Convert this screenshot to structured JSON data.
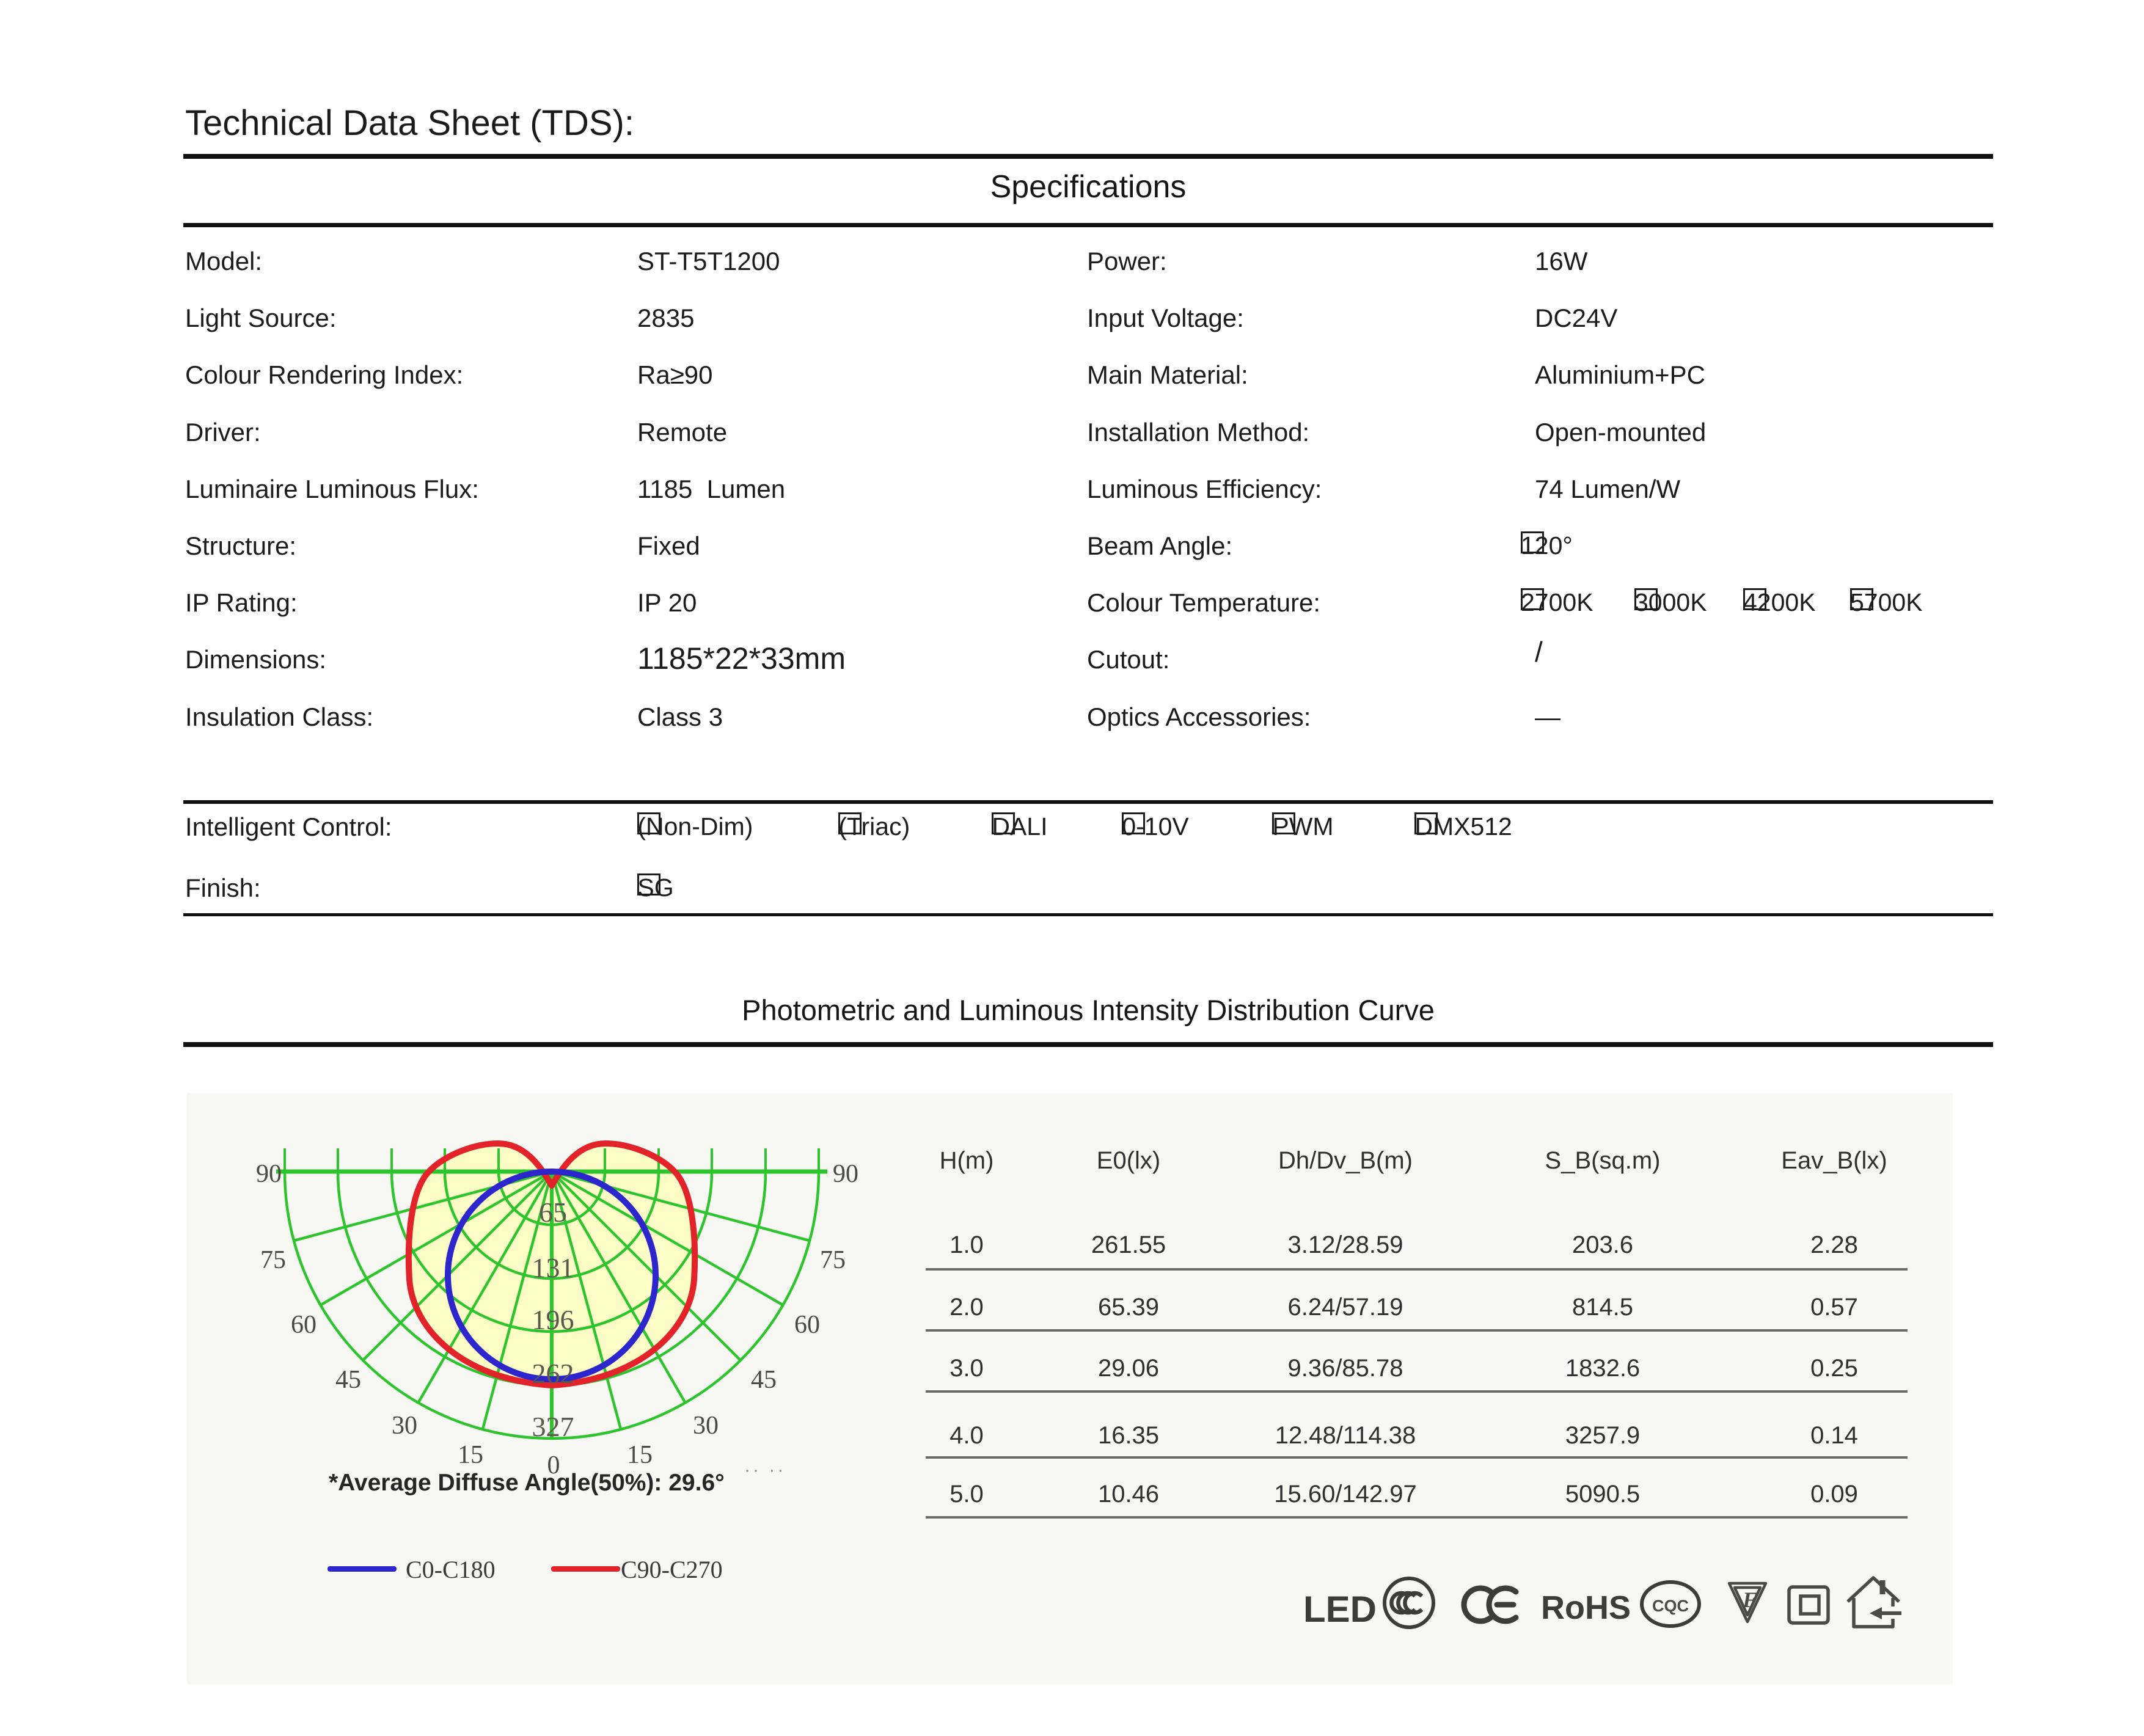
{
  "header": {
    "title": "Technical Data Sheet (TDS):"
  },
  "specifications": {
    "title": "Specifications",
    "rows": [
      {
        "l1": "Model:",
        "v1": "ST-T5T1200",
        "l2": "Power:",
        "v2": "16W"
      },
      {
        "l1": "Light Source:",
        "v1": "2835",
        "l2": "Input Voltage:",
        "v2": "DC24V"
      },
      {
        "l1": "Colour Rendering Index:",
        "v1": "Ra≥90",
        "l2": "Main Material:",
        "v2": "Aluminium+PC"
      },
      {
        "l1": "Driver:",
        "v1": "Remote",
        "l2": "Installation Method:",
        "v2": "Open-mounted"
      },
      {
        "l1": "Luminaire Luminous Flux:",
        "v1": "1185  Lumen",
        "l2": "Luminous Efficiency:",
        "v2": "74 Lumen/W"
      },
      {
        "l1": "Structure:",
        "v1": "Fixed",
        "l2": "Beam Angle:",
        "v2_options": [
          "120°"
        ]
      },
      {
        "l1": "IP Rating:",
        "v1": "IP 20",
        "l2": "Colour Temperature:",
        "v2_options": [
          "2700K",
          "3000K",
          "4200K",
          "5700K"
        ]
      },
      {
        "l1": "Dimensions:",
        "v1": "1185*22*33mm",
        "v1_style": "large",
        "l2": "Cutout:",
        "v2": "/",
        "v2_style": "raised"
      },
      {
        "l1": "Insulation Class:",
        "v1": "Class 3",
        "l2": "Optics Accessories:",
        "v2": "—"
      }
    ]
  },
  "control": {
    "label": "Intelligent Control:",
    "options": [
      "(Non-Dim)",
      "(Triac)",
      "DALI",
      "0-10V",
      "PWM",
      "DMX512"
    ],
    "finish_label": "Finish:",
    "finish_options": [
      "SG"
    ]
  },
  "photometric": {
    "title": "Photometric and Luminous Intensity Distribution Curve",
    "caption": "*Average Diffuse Angle(50%): 29.6°",
    "stray_marks": "·· ··",
    "legend": [
      {
        "label": "C0-C180",
        "color": "#2d26cd"
      },
      {
        "label": "C90-C270",
        "color": "#e2242a"
      }
    ]
  },
  "chart_data": {
    "type": "polar",
    "title": "Photometric and Luminous Intensity Distribution Curve",
    "units": "cd",
    "radial_ticks": [
      65,
      131,
      196,
      262,
      327
    ],
    "angle_ticks_deg": [
      90,
      75,
      60,
      45,
      30,
      15,
      0,
      15,
      30,
      45,
      60,
      75,
      90
    ],
    "annotation": "*Average Diffuse Angle(50%): 29.6°",
    "grid_color": "#2ec42e",
    "fill_color": "#fcfcc6",
    "series": [
      {
        "name": "C0-C180",
        "color": "#2d26cd",
        "angles_deg": [
          0,
          15,
          30,
          45,
          60,
          75,
          90
        ],
        "intensity_cd": [
          254,
          246,
          220,
          180,
          127,
          66,
          0
        ]
      },
      {
        "name": "C90-C270",
        "color": "#e2242a",
        "angles_deg": [
          0,
          15,
          30,
          45,
          60,
          75,
          90,
          100
        ],
        "intensity_cd": [
          262,
          258,
          248,
          232,
          210,
          185,
          161,
          80
        ]
      }
    ]
  },
  "table": {
    "headers": [
      "H(m)",
      "E0(lx)",
      "Dh/Dv_B(m)",
      "S_B(sq.m)",
      "Eav_B(lx)"
    ],
    "rows": [
      [
        "1.0",
        "261.55",
        "3.12/28.59",
        "203.6",
        "2.28"
      ],
      [
        "2.0",
        "65.39",
        "6.24/57.19",
        "814.5",
        "0.57"
      ],
      [
        "3.0",
        "29.06",
        "9.36/85.78",
        "1832.6",
        "0.25"
      ],
      [
        "4.0",
        "16.35",
        "12.48/114.38",
        "3257.9",
        "0.14"
      ],
      [
        "5.0",
        "10.46",
        "15.60/142.97",
        "5090.5",
        "0.09"
      ]
    ]
  },
  "certifications": {
    "led": "LED",
    "ccc": "CCC",
    "ce": "CE",
    "rohs": "RoHS",
    "cqc": "CQC"
  }
}
